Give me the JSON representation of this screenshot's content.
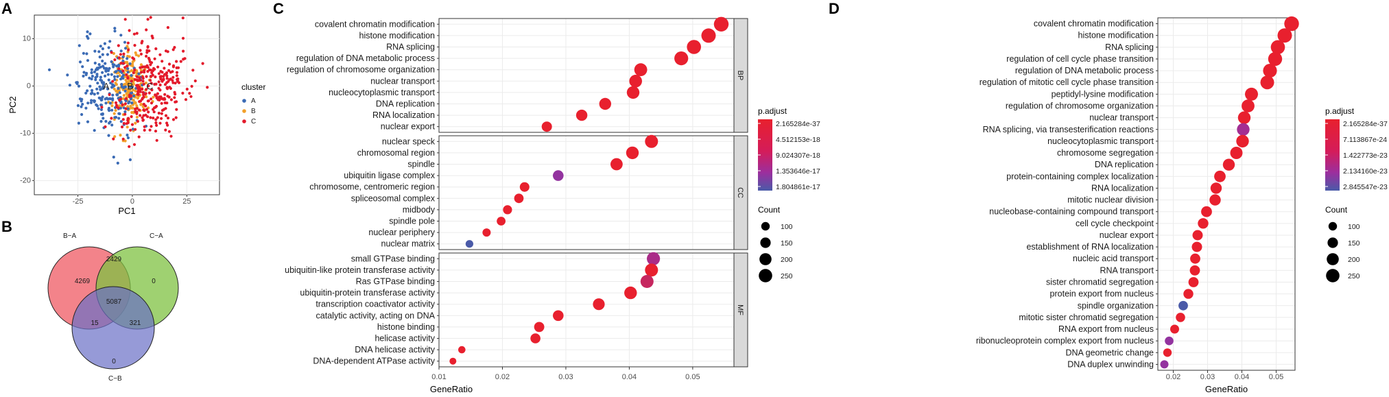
{
  "colors": {
    "A": "#3b6bb5",
    "B": "#f2a02a",
    "C": "#e31a2b",
    "high": "#e8202e",
    "mid": "#9b2f9e",
    "low": "#4a5aa8"
  },
  "panel_letters": [
    "A",
    "B",
    "C",
    "D"
  ],
  "chart_data": [
    {
      "id": "A",
      "type": "scatter",
      "xlabel": "PC1",
      "ylabel": "PC2",
      "xlim": [
        -45,
        40
      ],
      "ylim": [
        -23,
        15
      ],
      "xticks": [
        "-25",
        "0",
        "25"
      ],
      "xtick_values": [
        -25,
        0,
        25
      ],
      "yticks": [
        "10",
        "0",
        "-10",
        "-20"
      ],
      "ytick_values": [
        10,
        0,
        -10,
        -20
      ],
      "legend_title": "cluster",
      "clusters": [
        "A",
        "B",
        "C"
      ],
      "cluster_labels": [
        "A",
        "C",
        "B"
      ],
      "cluster_centers": [
        [
          -12,
          0
        ],
        [
          -1,
          0
        ],
        [
          8,
          0
        ]
      ],
      "cluster_spread": [
        [
          10,
          6.5
        ],
        [
          5,
          5
        ],
        [
          11,
          7.5
        ]
      ],
      "cluster_counts": [
        240,
        230,
        310
      ]
    },
    {
      "id": "B",
      "type": "venn",
      "sets": [
        "B−A",
        "C−A",
        "C−B"
      ],
      "regions": {
        "B_only": "4269",
        "BC_A": "2429",
        "CA_only": "0",
        "center": "5087",
        "B_CB": "15",
        "CA_CB": "321",
        "CB_only": "0"
      }
    },
    {
      "id": "C",
      "type": "dotplot",
      "xlabel": "GeneRatio",
      "xlim": [
        0.01,
        0.0565
      ],
      "xticks": [
        "0.01",
        "0.02",
        "0.03",
        "0.04",
        "0.05"
      ],
      "xtick_values": [
        0.01,
        0.02,
        0.03,
        0.04,
        0.05
      ],
      "legend_color_title": "p.adjust",
      "color_legend_labels": [
        "2.165284e-37",
        "4.512153e-18",
        "9.024307e-18",
        "1.353646e-17",
        "1.804861e-17"
      ],
      "legend_size_title": "Count",
      "size_legend": [
        "100",
        "150",
        "200",
        "250"
      ],
      "size_values": [
        100,
        150,
        200,
        250
      ],
      "facets": [
        {
          "strip": "BP",
          "terms": [
            "covalent chromatin modification",
            "histone modification",
            "RNA splicing",
            "regulation of DNA metabolic process",
            "regulation of chromosome organization",
            "nuclear transport",
            "nucleocytoplasmic transport",
            "DNA replication",
            "RNA localization",
            "nuclear export"
          ],
          "gene_ratio": [
            0.0545,
            0.0525,
            0.0502,
            0.0482,
            0.0418,
            0.041,
            0.0406,
            0.0362,
            0.0325,
            0.027
          ],
          "count": [
            297,
            286,
            274,
            263,
            228,
            224,
            221,
            197,
            177,
            147
          ],
          "color_index": [
            0,
            0,
            0,
            0,
            0,
            0,
            0,
            0,
            0,
            0
          ]
        },
        {
          "strip": "CC",
          "terms": [
            "nuclear speck",
            "chromosomal region",
            "spindle",
            "ubiquitin ligase complex",
            "chromosome, centromeric region",
            "spliceosomal complex",
            "midbody",
            "spindle pole",
            "nuclear periphery",
            "nuclear matrix"
          ],
          "gene_ratio": [
            0.0435,
            0.0405,
            0.038,
            0.0288,
            0.0235,
            0.0226,
            0.0208,
            0.0198,
            0.0175,
            0.0148
          ],
          "count": [
            237,
            221,
            207,
            157,
            128,
            123,
            113,
            108,
            95,
            81
          ],
          "color_index": [
            0,
            0,
            0,
            0.55,
            0,
            0,
            0,
            0,
            0,
            1
          ]
        },
        {
          "strip": "MF",
          "terms": [
            "small GTPase binding",
            "ubiquitin-like protein transferase activity",
            "Ras GTPase binding",
            "ubiquitin-protein transferase activity",
            "transcription coactivator activity",
            "catalytic activity, acting on DNA",
            "histone binding",
            "helicase activity",
            "DNA helicase activity",
            "DNA-dependent ATPase activity"
          ],
          "gene_ratio": [
            0.0438,
            0.0435,
            0.0428,
            0.0402,
            0.0352,
            0.0288,
            0.0258,
            0.0252,
            0.0136,
            0.0122
          ],
          "count": [
            239,
            237,
            233,
            219,
            192,
            157,
            141,
            137,
            74,
            66
          ],
          "color_index": [
            0.4,
            0,
            0.22,
            0,
            0,
            0,
            0,
            0,
            0,
            0
          ]
        }
      ]
    },
    {
      "id": "D",
      "type": "dotplot",
      "xlabel": "GeneRatio",
      "xlim": [
        0.0155,
        0.0555
      ],
      "xticks": [
        "0.02",
        "0.03",
        "0.04",
        "0.05"
      ],
      "xtick_values": [
        0.02,
        0.03,
        0.04,
        0.05
      ],
      "legend_color_title": "p.adjust",
      "color_legend_labels": [
        "2.165284e-37",
        "7.113867e-24",
        "1.422773e-23",
        "2.134160e-23",
        "2.845547e-23"
      ],
      "legend_size_title": "Count",
      "size_legend": [
        "100",
        "150",
        "200",
        "250"
      ],
      "size_values": [
        100,
        150,
        200,
        250
      ],
      "terms": [
        "covalent chromatin modification",
        "histone modification",
        "RNA splicing",
        "regulation of cell cycle phase transition",
        "regulation of DNA metabolic process",
        "regulation of mitotic cell cycle phase transition",
        "peptidyl-lysine modification",
        "regulation of chromosome organization",
        "nuclear transport",
        "RNA splicing, via transesterification reactions",
        "nucleocytoplasmic transport",
        "chromosome segregation",
        "DNA replication",
        "protein-containing complex localization",
        "RNA localization",
        "mitotic nuclear division",
        "nucleobase-containing compound transport",
        "cell cycle checkpoint",
        "nuclear export",
        "establishment of RNA localization",
        "nucleic acid transport",
        "RNA transport",
        "sister chromatid segregation",
        "protein export from nucleus",
        "spindle organization",
        "mitotic sister chromatid segregation",
        "RNA export from nucleus",
        "ribonucleoprotein complex export from nucleus",
        "DNA geometric change",
        "DNA duplex unwinding"
      ],
      "gene_ratio": [
        0.0545,
        0.0525,
        0.0505,
        0.0497,
        0.0482,
        0.0474,
        0.0428,
        0.0418,
        0.0407,
        0.0404,
        0.0402,
        0.0384,
        0.0362,
        0.0336,
        0.0325,
        0.0322,
        0.0297,
        0.0287,
        0.0271,
        0.0269,
        0.0264,
        0.0263,
        0.0259,
        0.0244,
        0.0229,
        0.0221,
        0.0204,
        0.0188,
        0.0183,
        0.0174
      ],
      "count": [
        297,
        286,
        275,
        271,
        263,
        258,
        233,
        228,
        222,
        220,
        219,
        209,
        197,
        183,
        177,
        175,
        162,
        156,
        148,
        147,
        144,
        143,
        141,
        133,
        125,
        120,
        111,
        102,
        100,
        95
      ],
      "color_index": [
        0,
        0,
        0,
        0,
        0,
        0,
        0,
        0,
        0,
        0.45,
        0,
        0,
        0,
        0,
        0,
        0,
        0,
        0,
        0,
        0,
        0,
        0,
        0,
        0,
        1,
        0,
        0,
        0.55,
        0,
        0.55
      ]
    }
  ]
}
